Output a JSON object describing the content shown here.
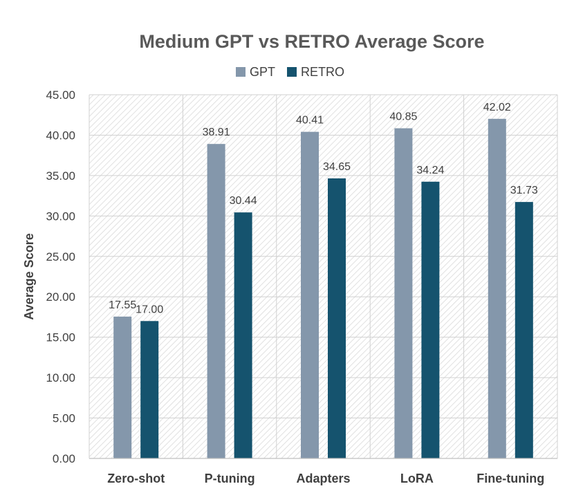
{
  "chart_data": {
    "type": "bar",
    "title": "Medium GPT vs RETRO Average Score",
    "xlabel": "",
    "ylabel": "Average Score",
    "categories": [
      "Zero-shot",
      "P-tuning",
      "Adapters",
      "LoRA",
      "Fine-tuning"
    ],
    "series": [
      {
        "name": "GPT",
        "color": "#8497ab",
        "values": [
          17.55,
          38.91,
          40.41,
          40.85,
          42.02
        ],
        "labels": [
          "17.55",
          "38.91",
          "40.41",
          "40.85",
          "42.02"
        ]
      },
      {
        "name": "RETRO",
        "color": "#15536e",
        "values": [
          17.0,
          30.44,
          34.65,
          34.24,
          31.73
        ],
        "labels": [
          "17.00",
          "30.44",
          "34.65",
          "34.24",
          "31.73"
        ]
      }
    ],
    "ylim": [
      0,
      45
    ],
    "yticks": [
      "0.00",
      "5.00",
      "10.00",
      "15.00",
      "20.00",
      "25.00",
      "30.00",
      "35.00",
      "40.00",
      "45.00"
    ],
    "legend_position": "top",
    "grid": true,
    "plot_background": "hatched"
  }
}
